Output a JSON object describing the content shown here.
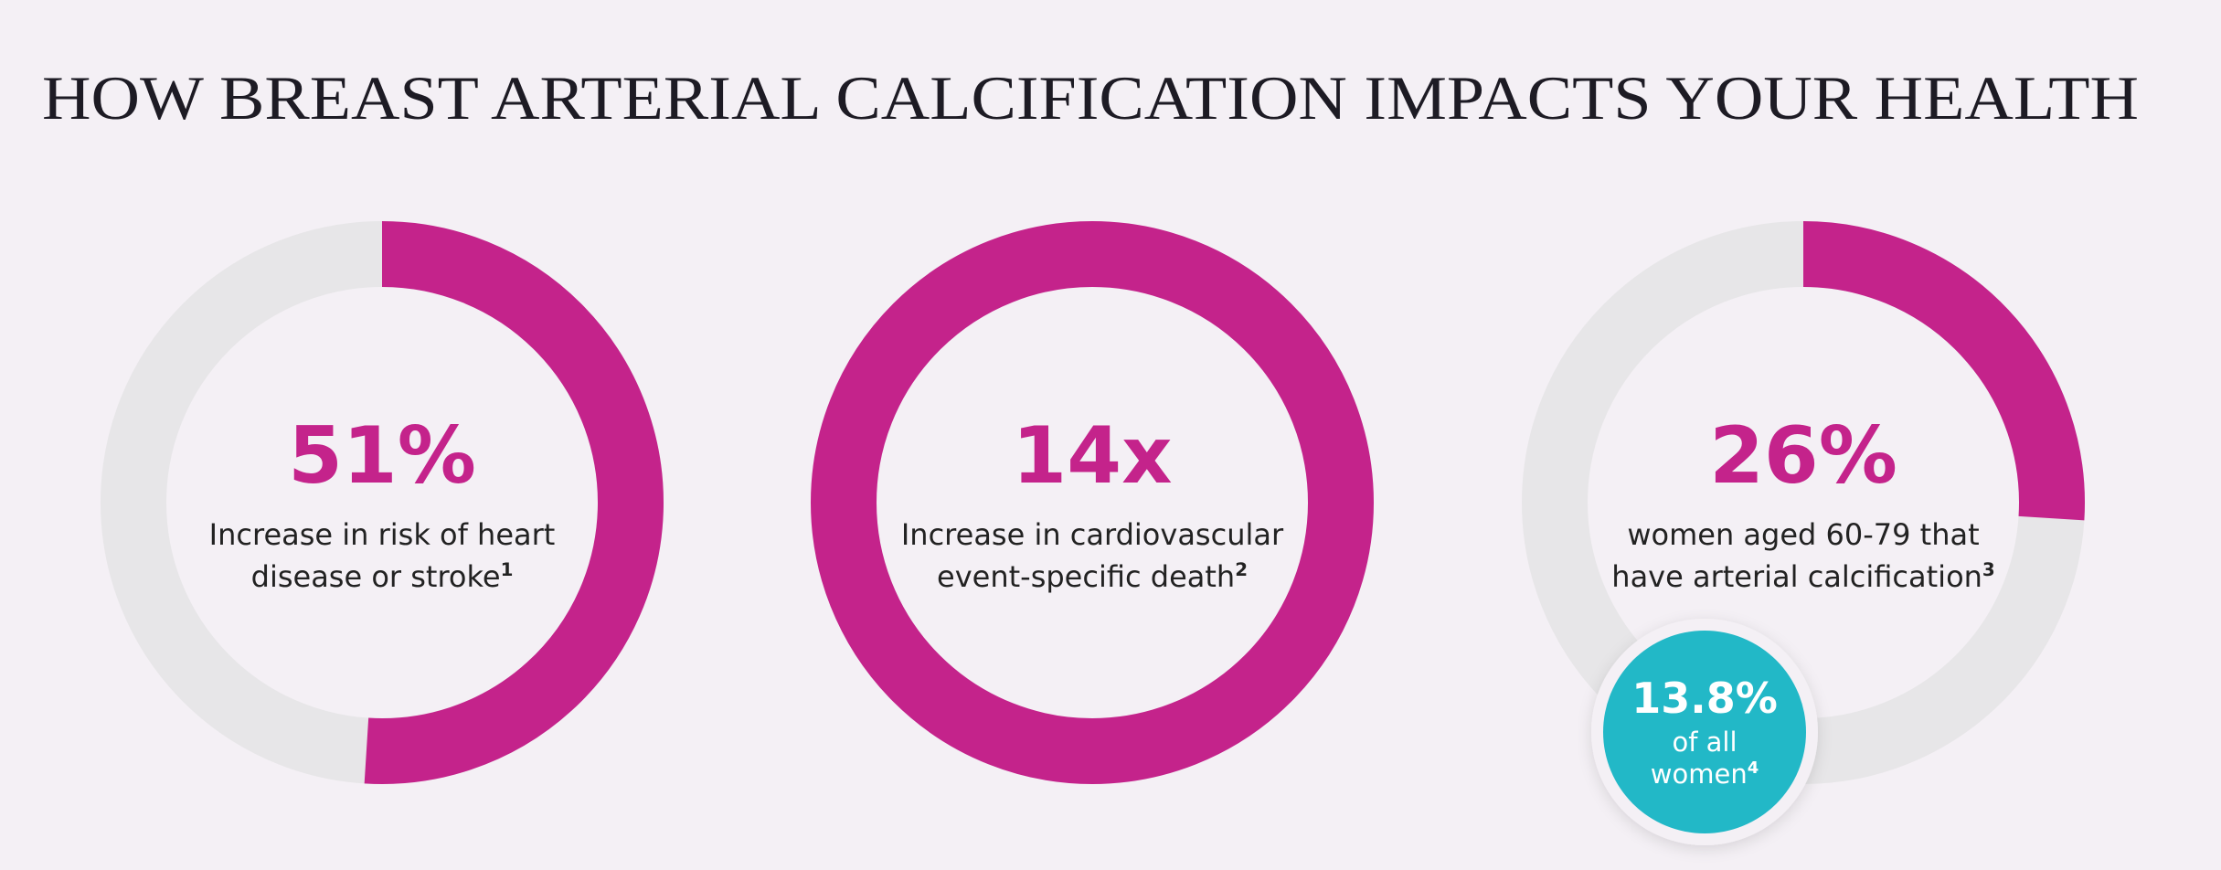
{
  "title": "HOW BREAST ARTERIAL CALCIFICATION IMPACTS YOUR HEALTH",
  "chart_data": [
    {
      "type": "donut",
      "value": 51,
      "value_label": "51%",
      "color": "#c4238b",
      "track_color": "#e7e6e8",
      "text": [
        "Increase in risk of heart",
        "disease or stroke"
      ],
      "note": "1"
    },
    {
      "type": "ring",
      "value": 14,
      "value_label": "14x",
      "color": "#c4238b",
      "text": [
        "Increase in cardiovascular",
        "event-specific death"
      ],
      "note": "2"
    },
    {
      "type": "donut",
      "value": 26,
      "value_label": "26%",
      "color": "#c4238b",
      "track_color": "#e7e6e8",
      "text": [
        "women aged 60-79 that",
        "have arterial calcification"
      ],
      "note": "3",
      "callout": {
        "value": 13.8,
        "value_label": "13.8%",
        "text": [
          "of all",
          "women"
        ],
        "note": "4",
        "color": "#22b8c7"
      }
    }
  ]
}
